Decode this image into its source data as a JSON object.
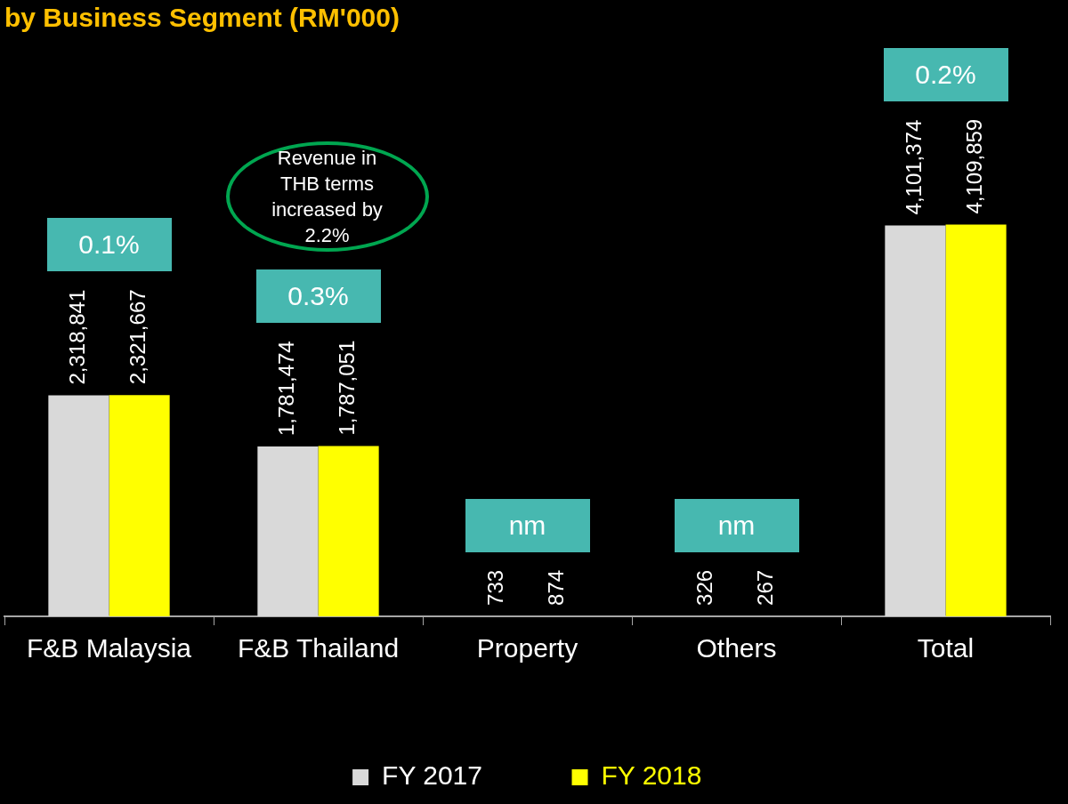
{
  "chart_data": {
    "type": "bar",
    "title": "by Business Segment (RM'000)",
    "categories": [
      "F&B Malaysia",
      "F&B Thailand",
      "Property",
      "Others",
      "Total"
    ],
    "series": [
      {
        "name": "FY 2017",
        "color": "#d9d9d9",
        "values": [
          2318841,
          1781474,
          733,
          326,
          4101374
        ],
        "value_labels": [
          "2,318,841",
          "1,781,474",
          "733",
          "326",
          "4,101,374"
        ]
      },
      {
        "name": "FY 2018",
        "color": "#ffff00",
        "values": [
          2321667,
          1787051,
          874,
          267,
          4109859
        ],
        "value_labels": [
          "2,321,667",
          "1,787,051",
          "874",
          "267",
          "4,109,859"
        ]
      }
    ],
    "legend": "bottom",
    "tick_labels": "x",
    "annotations": [
      "0.1%",
      "0.3%",
      "nm",
      "nm",
      "0.2%",
      "Revenue in THB terms increased by 2.2%"
    ]
  }
}
